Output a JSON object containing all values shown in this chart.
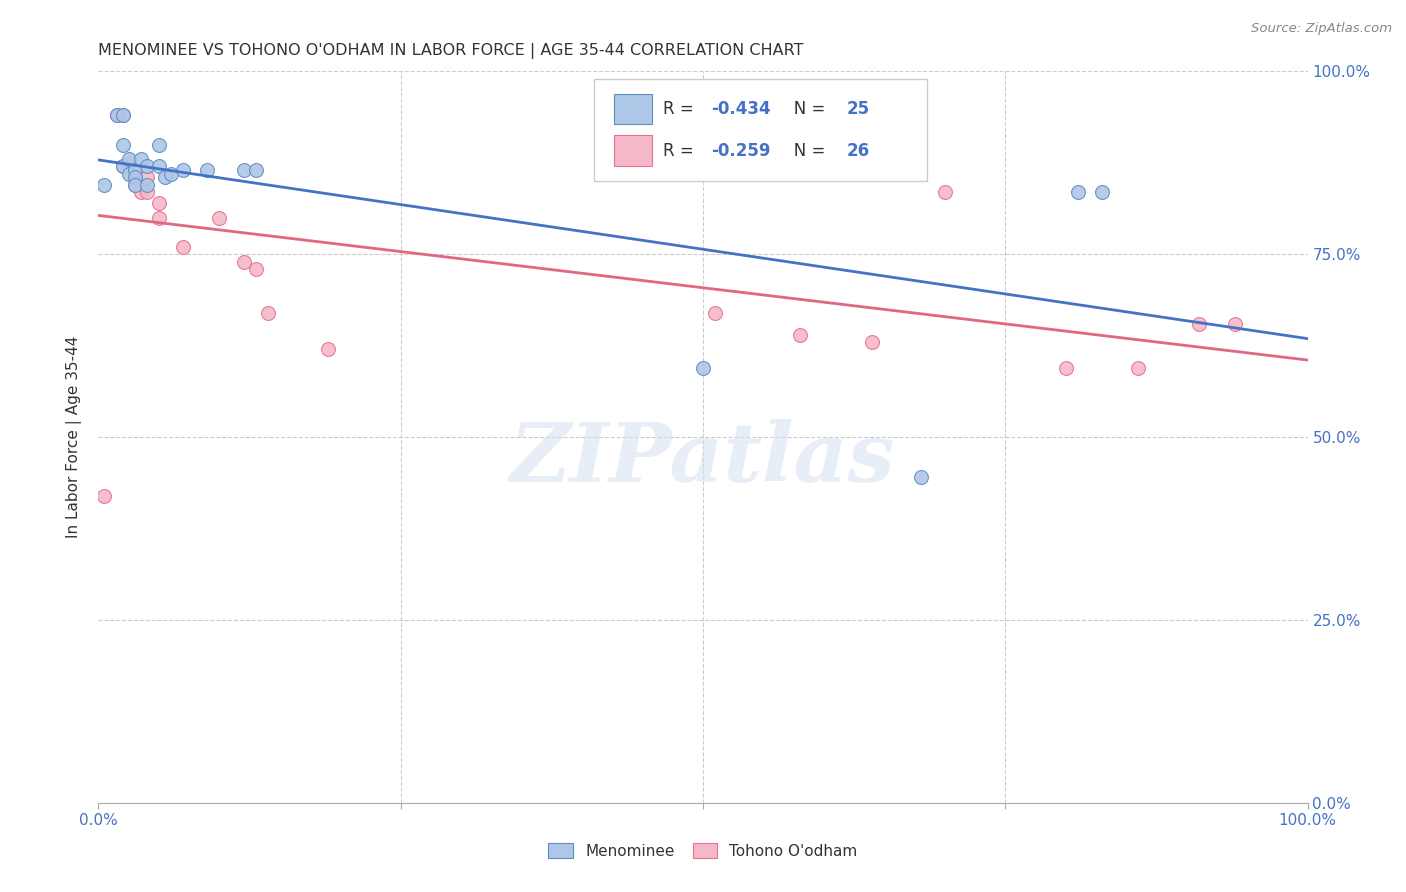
{
  "title": "MENOMINEE VS TOHONO O'ODHAM IN LABOR FORCE | AGE 35-44 CORRELATION CHART",
  "source": "Source: ZipAtlas.com",
  "ylabel": "In Labor Force | Age 35-44",
  "xlim": [
    0.0,
    1.0
  ],
  "ylim": [
    0.0,
    1.0
  ],
  "xticks": [
    0.0,
    0.25,
    0.5,
    0.75,
    1.0
  ],
  "yticks": [
    0.0,
    0.25,
    0.5,
    0.75,
    1.0
  ],
  "xticklabels": [
    "0.0%",
    "",
    "",
    "",
    "100.0%"
  ],
  "yticklabels_right": [
    "0.0%",
    "25.0%",
    "50.0%",
    "75.0%",
    "100.0%"
  ],
  "menominee_color": "#aec6e8",
  "tohono_color": "#f4b8c8",
  "menominee_edge_color": "#5b8ec4",
  "tohono_edge_color": "#e87090",
  "menominee_line_color": "#4472c4",
  "tohono_line_color": "#e06880",
  "watermark_text": "ZIPatlas",
  "R_menominee": -0.434,
  "N_menominee": 25,
  "R_tohono": -0.259,
  "N_tohono": 26,
  "menominee_x": [
    0.005,
    0.015,
    0.02,
    0.02,
    0.02,
    0.025,
    0.025,
    0.03,
    0.03,
    0.03,
    0.035,
    0.04,
    0.04,
    0.05,
    0.05,
    0.055,
    0.06,
    0.07,
    0.09,
    0.12,
    0.13,
    0.5,
    0.68,
    0.81,
    0.83
  ],
  "menominee_y": [
    0.845,
    0.94,
    0.94,
    0.9,
    0.87,
    0.88,
    0.86,
    0.865,
    0.855,
    0.845,
    0.88,
    0.87,
    0.845,
    0.9,
    0.87,
    0.855,
    0.86,
    0.865,
    0.865,
    0.865,
    0.865,
    0.595,
    0.445,
    0.835,
    0.835
  ],
  "tohono_x": [
    0.005,
    0.015,
    0.02,
    0.02,
    0.025,
    0.03,
    0.03,
    0.035,
    0.04,
    0.04,
    0.05,
    0.05,
    0.07,
    0.1,
    0.12,
    0.13,
    0.14,
    0.19,
    0.51,
    0.58,
    0.64,
    0.7,
    0.8,
    0.86,
    0.91,
    0.94
  ],
  "tohono_y": [
    0.42,
    0.94,
    0.94,
    0.87,
    0.875,
    0.855,
    0.845,
    0.835,
    0.855,
    0.835,
    0.82,
    0.8,
    0.76,
    0.8,
    0.74,
    0.73,
    0.67,
    0.62,
    0.67,
    0.64,
    0.63,
    0.835,
    0.595,
    0.595,
    0.655,
    0.655
  ],
  "background_color": "#ffffff",
  "grid_color": "#cccccc",
  "marker_size": 100
}
